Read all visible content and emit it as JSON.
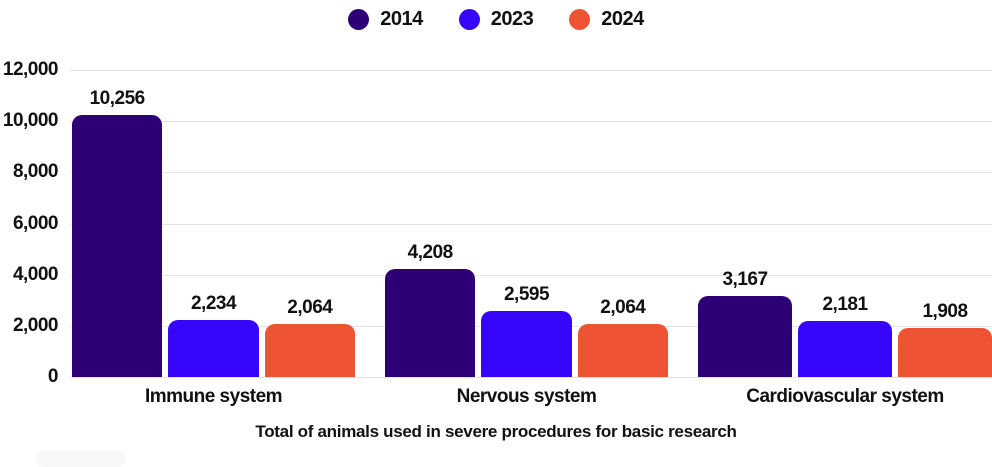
{
  "chart_data": {
    "type": "bar",
    "categories": [
      "Immune system",
      "Nervous system",
      "Cardiovascular system"
    ],
    "series": [
      {
        "name": "2014",
        "color": "#2D0076",
        "values": [
          10256,
          4208,
          3167
        ],
        "labels": [
          "10,256",
          "4,208",
          "3,167"
        ]
      },
      {
        "name": "2023",
        "color": "#3705FA",
        "values": [
          2234,
          2595,
          2181
        ],
        "labels": [
          "2,234",
          "2,595",
          "2,181"
        ]
      },
      {
        "name": "2024",
        "color": "#EE5434",
        "values": [
          2064,
          2064,
          1908
        ],
        "labels": [
          "2,064",
          "2,064",
          "1,908"
        ]
      }
    ],
    "title": "Total of animals used in severe procedures for basic research",
    "xlabel": "",
    "ylabel": "",
    "ylim": [
      0,
      12000
    ],
    "y_ticks": [
      {
        "value": 0,
        "label": "0"
      },
      {
        "value": 2000,
        "label": "2,000"
      },
      {
        "value": 4000,
        "label": "4,000"
      },
      {
        "value": 6000,
        "label": "6,000"
      },
      {
        "value": 8000,
        "label": "8,000"
      },
      {
        "value": 10000,
        "label": "10,000"
      },
      {
        "value": 12000,
        "label": "12,000"
      }
    ],
    "grid": true,
    "legend_position": "top"
  },
  "colors": {
    "grid": "#e4e4e4",
    "text": "#111111"
  }
}
